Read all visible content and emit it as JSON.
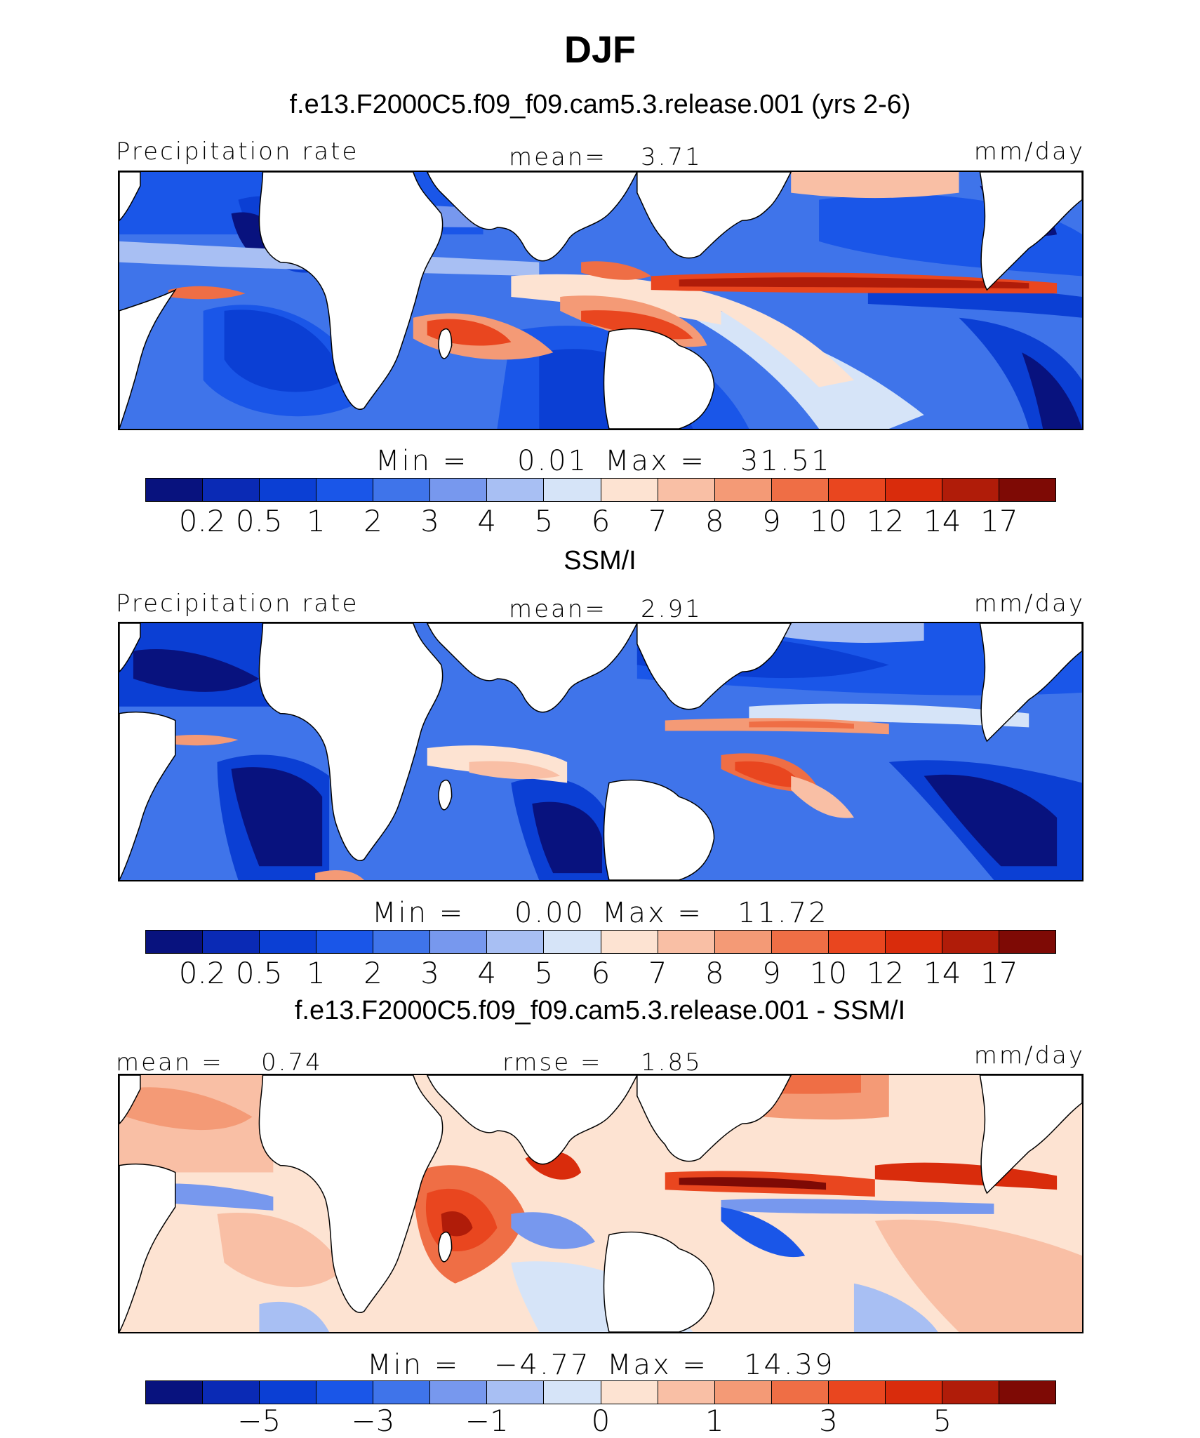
{
  "title": "DJF",
  "panels": [
    {
      "id": "model",
      "subtitle": "f.e13.F2000C5.f09_f09.cam5.3.release.001 (yrs 2-6)",
      "left_label": "Precipitation rate",
      "center_label": "mean=",
      "center_value": "3.71",
      "right_label": "mm/day",
      "min_label": "Min =",
      "min_value": "0.01",
      "max_label": "Max =",
      "max_value": "31.51"
    },
    {
      "id": "obs",
      "subtitle": "SSM/I",
      "left_label": "Precipitation rate",
      "center_label": "mean=",
      "center_value": "2.91",
      "right_label": "mm/day",
      "min_label": "Min =",
      "min_value": "0.00",
      "max_label": "Max =",
      "max_value": "11.72"
    },
    {
      "id": "diff",
      "subtitle": "f.e13.F2000C5.f09_f09.cam5.3.release.001 - SSM/I",
      "left_label": "mean =",
      "left_value": "0.74",
      "center_label": "rmse =",
      "center_value": "1.85",
      "right_label": "mm/day",
      "min_label": "Min =",
      "min_value": "−4.77",
      "max_label": "Max =",
      "max_value": "14.39"
    }
  ],
  "colorbars": {
    "precip": {
      "colors": [
        "#08127e",
        "#0a2ab5",
        "#0b3fd4",
        "#1a56e8",
        "#3f74ea",
        "#7798ee",
        "#a8bff3",
        "#d6e4f8",
        "#fde3d2",
        "#f9bfa5",
        "#f49a76",
        "#ef6e45",
        "#e9461f",
        "#d92c0c",
        "#b01c09",
        "#7e0a05"
      ],
      "ticks": [
        "0.2",
        "0.5",
        "1",
        "2",
        "3",
        "4",
        "5",
        "6",
        "7",
        "8",
        "9",
        "10",
        "12",
        "14",
        "17"
      ]
    },
    "diff": {
      "colors": [
        "#08127e",
        "#0a2ab5",
        "#0b3fd4",
        "#1a56e8",
        "#3f74ea",
        "#7798ee",
        "#a8bff3",
        "#d6e4f8",
        "#fde3d2",
        "#f9bfa5",
        "#f49a76",
        "#ef6e45",
        "#e9461f",
        "#d92c0c",
        "#b01c09",
        "#7e0a05"
      ],
      "ticks": [
        "−5",
        "−3",
        "−1",
        "0",
        "1",
        "3",
        "5"
      ]
    }
  }
}
